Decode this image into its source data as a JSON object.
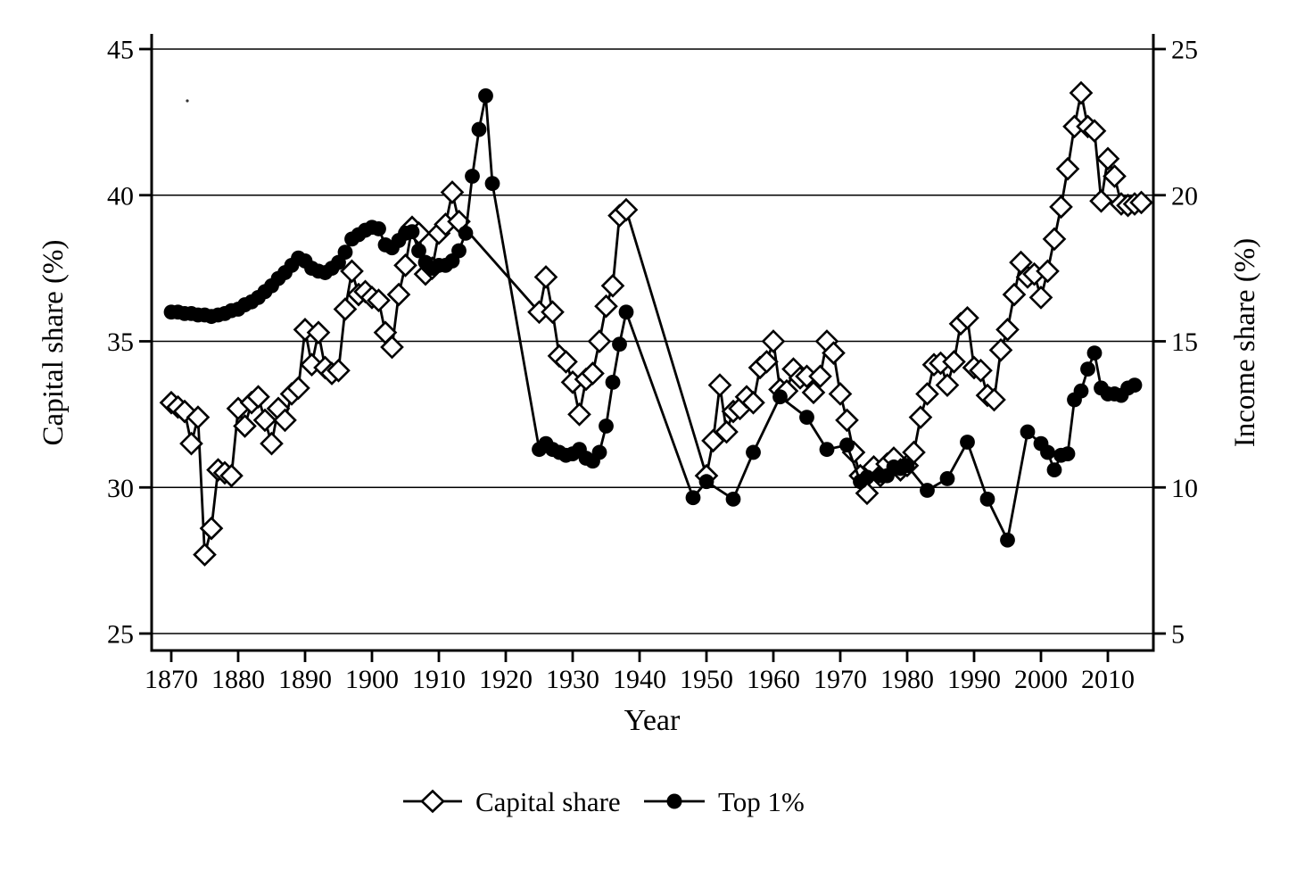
{
  "figure": {
    "background": "#ffffff",
    "ink_color": "#000000"
  },
  "chart_data": {
    "type": "line",
    "title": "",
    "xlabel": "Year",
    "ylabel_left": "Capital share (%)",
    "ylabel_right": "Income share (%)",
    "grid": true,
    "legend_position": "bottom-center",
    "xlim": [
      1867,
      2017
    ],
    "ylim_left": [
      24.4,
      45.5
    ],
    "ylim_right": [
      4.4,
      25.5
    ],
    "x_ticks": [
      1870,
      1880,
      1890,
      1900,
      1910,
      1920,
      1930,
      1940,
      1950,
      1960,
      1970,
      1980,
      1990,
      2000,
      2010
    ],
    "y_ticks_left": [
      45,
      40,
      35,
      30,
      25
    ],
    "y_ticks_right": [
      25,
      20,
      15,
      10,
      5
    ],
    "series": [
      {
        "name": "Capital share",
        "axis": "left",
        "marker": "diamond",
        "color": "#000000",
        "points": [
          [
            1870,
            32.9
          ],
          [
            1871,
            32.75
          ],
          [
            1872,
            32.6
          ],
          [
            1873,
            31.5
          ],
          [
            1874,
            32.4
          ],
          [
            1875,
            27.7
          ],
          [
            1876,
            28.6
          ],
          [
            1877,
            30.6
          ],
          [
            1878,
            30.5
          ],
          [
            1879,
            30.4
          ],
          [
            1880,
            32.7
          ],
          [
            1881,
            32.1
          ],
          [
            1882,
            32.9
          ],
          [
            1883,
            33.1
          ],
          [
            1884,
            32.3
          ],
          [
            1885,
            31.5
          ],
          [
            1886,
            32.7
          ],
          [
            1887,
            32.3
          ],
          [
            1888,
            33.2
          ],
          [
            1889,
            33.4
          ],
          [
            1890,
            35.4
          ],
          [
            1891,
            34.2
          ],
          [
            1892,
            35.3
          ],
          [
            1893,
            34.1
          ],
          [
            1894,
            33.9
          ],
          [
            1895,
            34.0
          ],
          [
            1896,
            36.1
          ],
          [
            1897,
            37.4
          ],
          [
            1898,
            36.6
          ],
          [
            1899,
            36.7
          ],
          [
            1900,
            36.5
          ],
          [
            1901,
            36.4
          ],
          [
            1902,
            35.3
          ],
          [
            1903,
            34.8
          ],
          [
            1904,
            36.6
          ],
          [
            1905,
            37.6
          ],
          [
            1906,
            38.9
          ],
          [
            1907,
            38.7
          ],
          [
            1908,
            37.3
          ],
          [
            1909,
            37.5
          ],
          [
            1910,
            38.7
          ],
          [
            1911,
            39.0
          ],
          [
            1912,
            40.1
          ],
          [
            1913,
            39.1
          ],
          [
            1925,
            36.0
          ],
          [
            1926,
            37.2
          ],
          [
            1927,
            36.0
          ],
          [
            1928,
            34.5
          ],
          [
            1929,
            34.3
          ],
          [
            1930,
            33.6
          ],
          [
            1931,
            32.5
          ],
          [
            1932,
            33.7
          ],
          [
            1933,
            33.9
          ],
          [
            1934,
            35.0
          ],
          [
            1935,
            36.2
          ],
          [
            1936,
            36.9
          ],
          [
            1937,
            39.3
          ],
          [
            1938,
            39.5
          ],
          [
            1950,
            30.4
          ],
          [
            1951,
            31.6
          ],
          [
            1952,
            33.5
          ],
          [
            1953,
            31.9
          ],
          [
            1954,
            32.6
          ],
          [
            1955,
            32.7
          ],
          [
            1956,
            33.1
          ],
          [
            1957,
            32.9
          ],
          [
            1958,
            34.1
          ],
          [
            1959,
            34.3
          ],
          [
            1960,
            35.0
          ],
          [
            1961,
            33.35
          ],
          [
            1962,
            33.3
          ],
          [
            1963,
            34.05
          ],
          [
            1964,
            33.75
          ],
          [
            1965,
            33.8
          ],
          [
            1966,
            33.25
          ],
          [
            1967,
            33.8
          ],
          [
            1968,
            35.0
          ],
          [
            1969,
            34.6
          ],
          [
            1970,
            33.2
          ],
          [
            1971,
            32.3
          ],
          [
            1972,
            31.2
          ],
          [
            1973,
            30.4
          ],
          [
            1974,
            29.8
          ],
          [
            1975,
            30.7
          ],
          [
            1976,
            30.4
          ],
          [
            1977,
            30.8
          ],
          [
            1978,
            31.0
          ],
          [
            1979,
            30.6
          ],
          [
            1980,
            30.75
          ],
          [
            1981,
            31.2
          ],
          [
            1982,
            32.4
          ],
          [
            1983,
            33.2
          ],
          [
            1984,
            34.2
          ],
          [
            1985,
            34.25
          ],
          [
            1986,
            33.5
          ],
          [
            1987,
            34.3
          ],
          [
            1988,
            35.6
          ],
          [
            1989,
            35.8
          ],
          [
            1990,
            34.1
          ],
          [
            1991,
            34.0
          ],
          [
            1992,
            33.15
          ],
          [
            1993,
            33.0
          ],
          [
            1994,
            34.7
          ],
          [
            1995,
            35.4
          ],
          [
            1996,
            36.6
          ],
          [
            1997,
            37.7
          ],
          [
            1998,
            37.2
          ],
          [
            1999,
            37.3
          ],
          [
            2000,
            36.5
          ],
          [
            2001,
            37.4
          ],
          [
            2002,
            38.5
          ],
          [
            2003,
            39.6
          ],
          [
            2004,
            40.9
          ],
          [
            2005,
            42.35
          ],
          [
            2006,
            43.5
          ],
          [
            2007,
            42.35
          ],
          [
            2008,
            42.2
          ],
          [
            2009,
            39.8
          ],
          [
            2010,
            41.25
          ],
          [
            2011,
            40.65
          ],
          [
            2012,
            39.7
          ],
          [
            2013,
            39.65
          ],
          [
            2014,
            39.7
          ],
          [
            2015,
            39.75
          ]
        ]
      },
      {
        "name": "Top 1%",
        "axis": "right",
        "marker": "circle",
        "color": "#000000",
        "points": [
          [
            1870,
            16.0
          ],
          [
            1871,
            16.0
          ],
          [
            1872,
            15.95
          ],
          [
            1873,
            15.95
          ],
          [
            1874,
            15.9
          ],
          [
            1875,
            15.9
          ],
          [
            1876,
            15.85
          ],
          [
            1877,
            15.9
          ],
          [
            1878,
            15.95
          ],
          [
            1879,
            16.05
          ],
          [
            1880,
            16.1
          ],
          [
            1881,
            16.25
          ],
          [
            1882,
            16.35
          ],
          [
            1883,
            16.5
          ],
          [
            1884,
            16.7
          ],
          [
            1885,
            16.9
          ],
          [
            1886,
            17.15
          ],
          [
            1887,
            17.35
          ],
          [
            1888,
            17.6
          ],
          [
            1889,
            17.85
          ],
          [
            1890,
            17.75
          ],
          [
            1891,
            17.5
          ],
          [
            1892,
            17.4
          ],
          [
            1893,
            17.35
          ],
          [
            1894,
            17.5
          ],
          [
            1895,
            17.7
          ],
          [
            1896,
            18.05
          ],
          [
            1897,
            18.5
          ],
          [
            1898,
            18.65
          ],
          [
            1899,
            18.8
          ],
          [
            1900,
            18.9
          ],
          [
            1901,
            18.85
          ],
          [
            1902,
            18.3
          ],
          [
            1903,
            18.2
          ],
          [
            1904,
            18.45
          ],
          [
            1905,
            18.7
          ],
          [
            1906,
            18.75
          ],
          [
            1907,
            18.1
          ],
          [
            1908,
            17.7
          ],
          [
            1909,
            17.5
          ],
          [
            1910,
            17.6
          ],
          [
            1911,
            17.6
          ],
          [
            1912,
            17.75
          ],
          [
            1913,
            18.1
          ],
          [
            1914,
            18.7
          ],
          [
            1915,
            20.65
          ],
          [
            1916,
            22.25
          ],
          [
            1917,
            23.4
          ],
          [
            1918,
            20.4
          ],
          [
            1925,
            11.3
          ],
          [
            1926,
            11.5
          ],
          [
            1927,
            11.3
          ],
          [
            1928,
            11.2
          ],
          [
            1929,
            11.1
          ],
          [
            1930,
            11.15
          ],
          [
            1931,
            11.3
          ],
          [
            1932,
            11.0
          ],
          [
            1933,
            10.9
          ],
          [
            1934,
            11.2
          ],
          [
            1935,
            12.1
          ],
          [
            1936,
            13.6
          ],
          [
            1937,
            14.9
          ],
          [
            1938,
            16.0
          ],
          [
            1948,
            9.65
          ],
          [
            1950,
            10.2
          ],
          [
            1954,
            9.6
          ],
          [
            1957,
            11.2
          ],
          [
            1961,
            13.1
          ],
          [
            1965,
            12.4
          ],
          [
            1968,
            11.3
          ],
          [
            1971,
            11.45
          ],
          [
            1973,
            10.2
          ],
          [
            1974,
            10.35
          ],
          [
            1976,
            10.4
          ],
          [
            1977,
            10.4
          ],
          [
            1978,
            10.7
          ],
          [
            1979,
            10.65
          ],
          [
            1980,
            10.75
          ],
          [
            1983,
            9.9
          ],
          [
            1986,
            10.3
          ],
          [
            1989,
            11.55
          ],
          [
            1992,
            9.6
          ],
          [
            1995,
            8.2
          ],
          [
            1998,
            11.9
          ],
          [
            2000,
            11.5
          ],
          [
            2001,
            11.2
          ],
          [
            2002,
            10.6
          ],
          [
            2003,
            11.1
          ],
          [
            2004,
            11.15
          ],
          [
            2005,
            13.0
          ],
          [
            2006,
            13.3
          ],
          [
            2007,
            14.05
          ],
          [
            2008,
            14.6
          ],
          [
            2009,
            13.4
          ],
          [
            2010,
            13.2
          ],
          [
            2011,
            13.2
          ],
          [
            2012,
            13.15
          ],
          [
            2013,
            13.4
          ],
          [
            2014,
            13.5
          ]
        ]
      }
    ]
  }
}
